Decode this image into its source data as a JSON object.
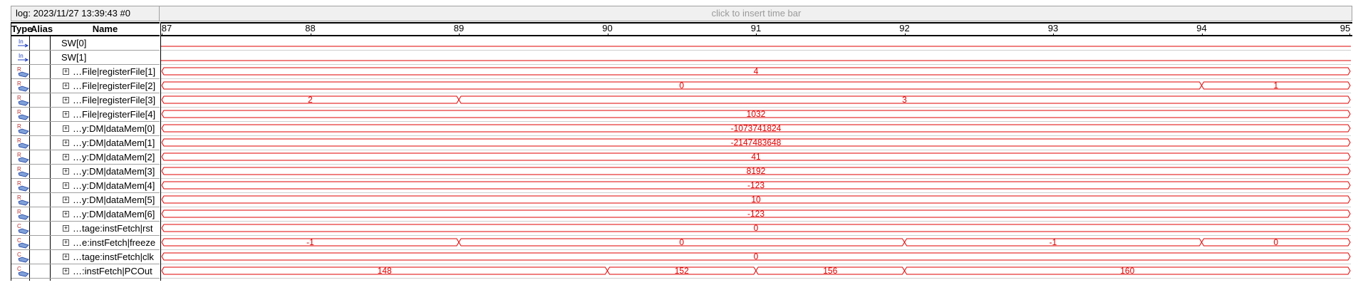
{
  "log": {
    "label": "log: 2023/11/27 13:39:43  #0",
    "timebar_hint": "click to insert time bar"
  },
  "columns": {
    "type": "Type",
    "alias": "Alias",
    "name": "Name"
  },
  "colors": {
    "wave": "#e00000",
    "grid": "#a0a0a0"
  },
  "time": {
    "start": 87,
    "end": 95,
    "ticks": [
      "87",
      "88",
      "89",
      "90",
      "91",
      "92",
      "93",
      "94",
      "95"
    ]
  },
  "signals": [
    {
      "name": "SW[0]",
      "type": "input-icon",
      "expandable": false,
      "kind": "bit",
      "segments": []
    },
    {
      "name": "SW[1]",
      "type": "input-icon",
      "expandable": false,
      "kind": "bit",
      "segments": []
    },
    {
      "name": "…File|registerFile[1]",
      "type": "register-icon",
      "expandable": true,
      "kind": "bus",
      "segments": [
        {
          "from": 87,
          "to": 95,
          "value": "4"
        }
      ]
    },
    {
      "name": "…File|registerFile[2]",
      "type": "register-icon",
      "expandable": true,
      "kind": "bus",
      "segments": [
        {
          "from": 87,
          "to": 94,
          "value": "0"
        },
        {
          "from": 94,
          "to": 95,
          "value": "1"
        }
      ]
    },
    {
      "name": "…File|registerFile[3]",
      "type": "register-icon",
      "expandable": true,
      "kind": "bus",
      "segments": [
        {
          "from": 87,
          "to": 89,
          "value": "2"
        },
        {
          "from": 89,
          "to": 95,
          "value": "3"
        }
      ]
    },
    {
      "name": "…File|registerFile[4]",
      "type": "register-icon",
      "expandable": true,
      "kind": "bus",
      "segments": [
        {
          "from": 87,
          "to": 95,
          "value": "1032"
        }
      ]
    },
    {
      "name": "…y:DM|dataMem[0]",
      "type": "register-icon",
      "expandable": true,
      "kind": "bus",
      "segments": [
        {
          "from": 87,
          "to": 95,
          "value": "-1073741824"
        }
      ]
    },
    {
      "name": "…y:DM|dataMem[1]",
      "type": "register-icon",
      "expandable": true,
      "kind": "bus",
      "segments": [
        {
          "from": 87,
          "to": 95,
          "value": "-2147483648"
        }
      ]
    },
    {
      "name": "…y:DM|dataMem[2]",
      "type": "register-icon",
      "expandable": true,
      "kind": "bus",
      "segments": [
        {
          "from": 87,
          "to": 95,
          "value": "41"
        }
      ]
    },
    {
      "name": "…y:DM|dataMem[3]",
      "type": "register-icon",
      "expandable": true,
      "kind": "bus",
      "segments": [
        {
          "from": 87,
          "to": 95,
          "value": "8192"
        }
      ]
    },
    {
      "name": "…y:DM|dataMem[4]",
      "type": "register-icon",
      "expandable": true,
      "kind": "bus",
      "segments": [
        {
          "from": 87,
          "to": 95,
          "value": "-123"
        }
      ]
    },
    {
      "name": "…y:DM|dataMem[5]",
      "type": "register-icon",
      "expandable": true,
      "kind": "bus",
      "segments": [
        {
          "from": 87,
          "to": 95,
          "value": "10"
        }
      ]
    },
    {
      "name": "…y:DM|dataMem[6]",
      "type": "register-icon",
      "expandable": true,
      "kind": "bus",
      "segments": [
        {
          "from": 87,
          "to": 95,
          "value": "-123"
        }
      ]
    },
    {
      "name": "…tage:instFetch|rst",
      "type": "combinational-icon",
      "expandable": true,
      "kind": "bus",
      "segments": [
        {
          "from": 87,
          "to": 95,
          "value": "0"
        }
      ]
    },
    {
      "name": "…e:instFetch|freeze",
      "type": "combinational-icon",
      "expandable": true,
      "kind": "bus",
      "segments": [
        {
          "from": 87,
          "to": 89,
          "value": "-1"
        },
        {
          "from": 89,
          "to": 92,
          "value": "0"
        },
        {
          "from": 92,
          "to": 94,
          "value": "-1"
        },
        {
          "from": 94,
          "to": 95,
          "value": "0"
        }
      ]
    },
    {
      "name": "…tage:instFetch|clk",
      "type": "combinational-icon",
      "expandable": true,
      "kind": "bus",
      "segments": [
        {
          "from": 87,
          "to": 95,
          "value": "0"
        }
      ]
    },
    {
      "name": "…:instFetch|PCOut",
      "type": "combinational-icon",
      "expandable": true,
      "kind": "bus",
      "segments": [
        {
          "from": 87,
          "to": 90,
          "value": "148"
        },
        {
          "from": 90,
          "to": 91,
          "value": "152"
        },
        {
          "from": 91,
          "to": 92,
          "value": "156"
        },
        {
          "from": 92,
          "to": 95,
          "value": "160"
        }
      ]
    }
  ]
}
